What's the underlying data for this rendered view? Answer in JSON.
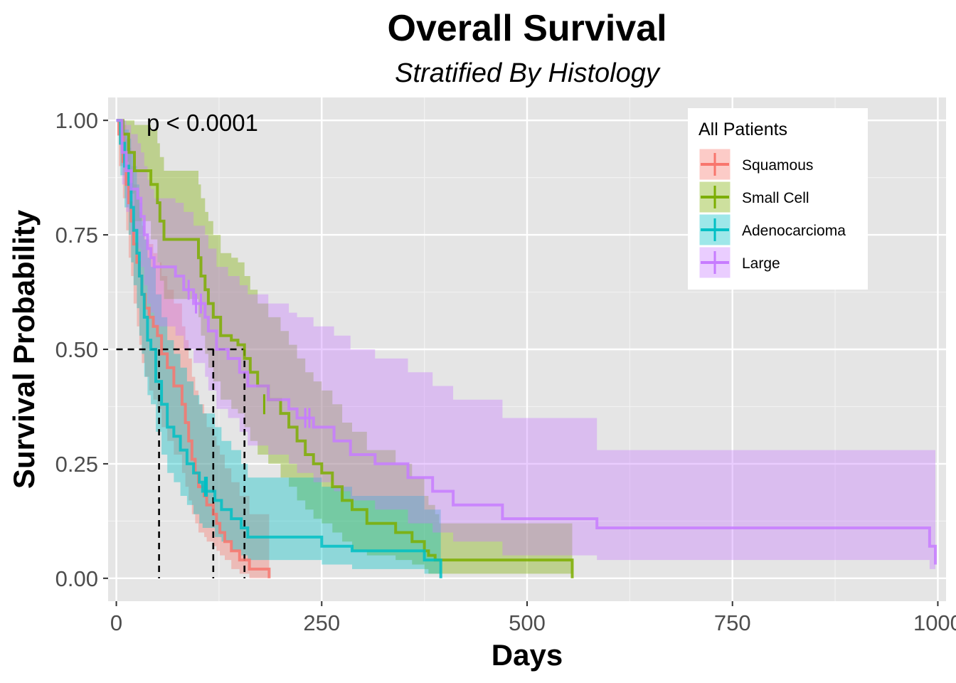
{
  "chart_data": {
    "type": "line",
    "title": "Overall Survival",
    "subtitle": "Stratified By Histology",
    "xlabel": "Days",
    "ylabel": "Survival Probability",
    "xlim": [
      -10,
      1010
    ],
    "ylim": [
      -0.05,
      1.05
    ],
    "xticks": [
      0,
      250,
      500,
      750,
      1000
    ],
    "xtick_labels": [
      "0",
      "250",
      "500",
      "750",
      "1000"
    ],
    "yticks": [
      0,
      0.25,
      0.5,
      0.75,
      1.0
    ],
    "ytick_labels": [
      "0.00",
      "0.25",
      "0.50",
      "0.75",
      "1.00"
    ],
    "grid": true,
    "annotation": "p < 0.0001",
    "median_line_y": 0.5,
    "medians_x": [
      52,
      118,
      156
    ],
    "legend": {
      "title": "All Patients",
      "position": "top-right"
    },
    "series": [
      {
        "name": "Squamous",
        "color": "#F8766D",
        "x": [
          0,
          3,
          8,
          12,
          15,
          18,
          21,
          25,
          28,
          31,
          35,
          40,
          45,
          50,
          55,
          62,
          70,
          80,
          84,
          88,
          92,
          96,
          100,
          107,
          110,
          118,
          122,
          126,
          132,
          140,
          150,
          162,
          186
        ],
        "y": [
          1.0,
          0.97,
          0.91,
          0.86,
          0.82,
          0.78,
          0.73,
          0.69,
          0.66,
          0.62,
          0.59,
          0.57,
          0.55,
          0.53,
          0.49,
          0.46,
          0.42,
          0.38,
          0.34,
          0.3,
          0.26,
          0.23,
          0.2,
          0.18,
          0.16,
          0.14,
          0.12,
          0.1,
          0.08,
          0.06,
          0.04,
          0.02,
          0.0
        ],
        "lower": [
          1.0,
          0.9,
          0.83,
          0.76,
          0.7,
          0.66,
          0.6,
          0.55,
          0.51,
          0.47,
          0.44,
          0.41,
          0.39,
          0.37,
          0.33,
          0.3,
          0.27,
          0.23,
          0.2,
          0.17,
          0.14,
          0.12,
          0.1,
          0.09,
          0.08,
          0.07,
          0.06,
          0.05,
          0.04,
          0.02,
          0.01,
          0.0,
          0.0
        ],
        "upper": [
          1.0,
          1.0,
          0.99,
          0.96,
          0.94,
          0.9,
          0.86,
          0.83,
          0.8,
          0.77,
          0.74,
          0.73,
          0.71,
          0.69,
          0.66,
          0.63,
          0.6,
          0.55,
          0.52,
          0.48,
          0.44,
          0.41,
          0.38,
          0.36,
          0.33,
          0.31,
          0.29,
          0.27,
          0.24,
          0.21,
          0.18,
          0.14,
          0.0
        ],
        "censors": [
          [
            110,
            0.2
          ]
        ]
      },
      {
        "name": "Small Cell",
        "color": "#7CAE00",
        "x": [
          0,
          8,
          15,
          22,
          42,
          50,
          53,
          58,
          100,
          103,
          108,
          112,
          118,
          127,
          140,
          148,
          156,
          163,
          172,
          185,
          200,
          210,
          220,
          230,
          240,
          250,
          263,
          275,
          287,
          305,
          340,
          360,
          375,
          380,
          388,
          393,
          470,
          555
        ],
        "y": [
          1.0,
          0.97,
          0.93,
          0.89,
          0.86,
          0.82,
          0.78,
          0.74,
          0.7,
          0.66,
          0.63,
          0.6,
          0.57,
          0.53,
          0.52,
          0.51,
          0.48,
          0.45,
          0.42,
          0.39,
          0.36,
          0.33,
          0.3,
          0.27,
          0.25,
          0.23,
          0.2,
          0.17,
          0.15,
          0.12,
          0.1,
          0.08,
          0.06,
          0.05,
          0.04,
          0.04,
          0.04,
          0.0
        ],
        "lower": [
          1.0,
          0.91,
          0.84,
          0.78,
          0.74,
          0.69,
          0.65,
          0.61,
          0.57,
          0.53,
          0.49,
          0.46,
          0.43,
          0.39,
          0.37,
          0.36,
          0.33,
          0.3,
          0.27,
          0.25,
          0.22,
          0.2,
          0.17,
          0.15,
          0.13,
          0.12,
          0.1,
          0.08,
          0.06,
          0.05,
          0.04,
          0.03,
          0.02,
          0.01,
          0.01,
          0.01,
          0.01,
          0.0
        ],
        "upper": [
          1.0,
          1.0,
          1.0,
          0.99,
          0.98,
          0.95,
          0.92,
          0.89,
          0.86,
          0.83,
          0.8,
          0.78,
          0.75,
          0.71,
          0.7,
          0.69,
          0.66,
          0.63,
          0.6,
          0.57,
          0.54,
          0.51,
          0.48,
          0.45,
          0.43,
          0.41,
          0.38,
          0.34,
          0.32,
          0.28,
          0.25,
          0.22,
          0.18,
          0.16,
          0.14,
          0.12,
          0.12,
          0.12
        ],
        "censors": [
          [
            180,
            0.38
          ]
        ]
      },
      {
        "name": "Adenocarcioma",
        "color": "#00BFC4",
        "x": [
          0,
          5,
          10,
          15,
          18,
          21,
          25,
          28,
          31,
          34,
          38,
          42,
          48,
          55,
          62,
          70,
          78,
          86,
          94,
          101,
          105,
          120,
          128,
          140,
          152,
          160,
          190,
          250,
          287,
          375,
          395
        ],
        "y": [
          1.0,
          0.95,
          0.9,
          0.86,
          0.81,
          0.76,
          0.71,
          0.66,
          0.62,
          0.57,
          0.52,
          0.5,
          0.43,
          0.38,
          0.33,
          0.31,
          0.28,
          0.25,
          0.23,
          0.21,
          0.19,
          0.17,
          0.15,
          0.13,
          0.11,
          0.09,
          0.09,
          0.07,
          0.06,
          0.04,
          0.0
        ],
        "lower": [
          1.0,
          0.88,
          0.81,
          0.75,
          0.69,
          0.64,
          0.59,
          0.53,
          0.49,
          0.44,
          0.4,
          0.38,
          0.32,
          0.27,
          0.23,
          0.21,
          0.18,
          0.16,
          0.14,
          0.12,
          0.11,
          0.09,
          0.08,
          0.06,
          0.05,
          0.04,
          0.04,
          0.03,
          0.02,
          0.01,
          0.0
        ],
        "upper": [
          1.0,
          1.0,
          0.98,
          0.96,
          0.93,
          0.9,
          0.86,
          0.82,
          0.78,
          0.74,
          0.7,
          0.68,
          0.62,
          0.57,
          0.52,
          0.49,
          0.46,
          0.43,
          0.4,
          0.38,
          0.36,
          0.33,
          0.3,
          0.28,
          0.25,
          0.22,
          0.22,
          0.2,
          0.18,
          0.15,
          0.15
        ],
        "censors": [
          [
            108,
            0.2
          ],
          [
            110,
            0.2
          ]
        ]
      },
      {
        "name": "Large",
        "color": "#C77CFF",
        "x": [
          0,
          7,
          12,
          18,
          26,
          30,
          34,
          38,
          42,
          46,
          52,
          72,
          82,
          94,
          108,
          112,
          122,
          136,
          150,
          160,
          185,
          210,
          220,
          240,
          265,
          285,
          315,
          355,
          385,
          410,
          470,
          585,
          990,
          997
        ],
        "y": [
          1.0,
          0.93,
          0.89,
          0.85,
          0.83,
          0.79,
          0.75,
          0.72,
          0.7,
          0.68,
          0.68,
          0.66,
          0.63,
          0.6,
          0.57,
          0.54,
          0.5,
          0.48,
          0.45,
          0.42,
          0.39,
          0.37,
          0.35,
          0.33,
          0.3,
          0.27,
          0.25,
          0.22,
          0.19,
          0.16,
          0.13,
          0.11,
          0.07,
          0.03
        ],
        "lower": [
          1.0,
          0.86,
          0.8,
          0.75,
          0.72,
          0.68,
          0.64,
          0.6,
          0.58,
          0.55,
          0.55,
          0.53,
          0.5,
          0.47,
          0.44,
          0.41,
          0.37,
          0.35,
          0.32,
          0.29,
          0.27,
          0.25,
          0.23,
          0.21,
          0.19,
          0.17,
          0.15,
          0.12,
          0.1,
          0.08,
          0.05,
          0.04,
          0.02,
          0.0
        ],
        "upper": [
          1.0,
          1.0,
          0.99,
          0.97,
          0.95,
          0.93,
          0.9,
          0.87,
          0.85,
          0.83,
          0.83,
          0.82,
          0.8,
          0.77,
          0.75,
          0.72,
          0.68,
          0.66,
          0.64,
          0.62,
          0.6,
          0.58,
          0.57,
          0.55,
          0.53,
          0.5,
          0.48,
          0.45,
          0.42,
          0.39,
          0.35,
          0.28,
          0.28,
          0.24
        ],
        "censors": [
          [
            88,
            0.63
          ],
          [
            97,
            0.6
          ],
          [
            103,
            0.6
          ],
          [
            230,
            0.35
          ],
          [
            235,
            0.35
          ]
        ]
      }
    ]
  }
}
